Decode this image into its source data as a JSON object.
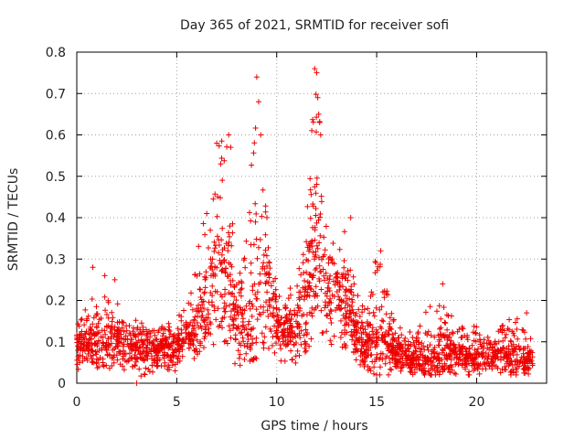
{
  "chart_data": {
    "type": "scatter",
    "title": "Day 365 of 2021, SRMTID for receiver sofi",
    "xlabel": "GPS time / hours",
    "ylabel": "SRMTID / TECUs",
    "xlim": [
      0,
      23.5
    ],
    "ylim": [
      0,
      0.8
    ],
    "grid": true,
    "marker": "+",
    "color": "#ee0000",
    "x_ticks": [
      "0",
      "5",
      "10",
      "15",
      "20"
    ],
    "x_tick_values": [
      0,
      5,
      10,
      15,
      20
    ],
    "y_ticks": [
      "0",
      "0.1",
      "0.2",
      "0.3",
      "0.4",
      "0.5",
      "0.6",
      "0.7",
      "0.8"
    ],
    "y_tick_values": [
      0,
      0.1,
      0.2,
      0.3,
      0.4,
      0.5,
      0.6,
      0.7,
      0.8
    ],
    "envelope": {
      "description": "Approximate SRMTID level vs time (hours), read from the scatter density",
      "x": [
        0,
        1,
        2,
        3,
        4,
        5,
        5.8,
        6.5,
        7.0,
        7.5,
        8.0,
        8.5,
        9.0,
        9.5,
        10.0,
        10.5,
        11.0,
        11.5,
        12.0,
        12.5,
        13.0,
        13.5,
        14.0,
        14.5,
        15.0,
        16.0,
        17.0,
        18.0,
        19.0,
        20.0,
        21.0,
        22.0,
        22.8
      ],
      "mean": [
        0.1,
        0.1,
        0.1,
        0.09,
        0.08,
        0.09,
        0.12,
        0.2,
        0.28,
        0.25,
        0.12,
        0.12,
        0.22,
        0.25,
        0.15,
        0.12,
        0.13,
        0.2,
        0.32,
        0.25,
        0.22,
        0.2,
        0.12,
        0.09,
        0.09,
        0.08,
        0.06,
        0.06,
        0.07,
        0.07,
        0.07,
        0.06,
        0.06
      ],
      "high": [
        0.16,
        0.22,
        0.2,
        0.15,
        0.15,
        0.15,
        0.25,
        0.45,
        0.58,
        0.6,
        0.25,
        0.35,
        0.74,
        0.45,
        0.25,
        0.22,
        0.28,
        0.46,
        0.76,
        0.4,
        0.32,
        0.38,
        0.22,
        0.18,
        0.32,
        0.14,
        0.12,
        0.24,
        0.14,
        0.15,
        0.13,
        0.17,
        0.1
      ],
      "low": [
        0.03,
        0.03,
        0.03,
        0.0,
        0.02,
        0.03,
        0.05,
        0.08,
        0.1,
        0.08,
        0.04,
        0.05,
        0.06,
        0.06,
        0.05,
        0.04,
        0.05,
        0.08,
        0.12,
        0.1,
        0.08,
        0.07,
        0.04,
        0.03,
        0.02,
        0.02,
        0.02,
        0.02,
        0.02,
        0.02,
        0.02,
        0.02,
        0.02
      ]
    },
    "notable_points": {
      "x": [
        0.8,
        1.4,
        1.9,
        3.0,
        6.5,
        7.0,
        7.2,
        7.6,
        7.7,
        9.0,
        9.1,
        9.2,
        11.9,
        12.0,
        12.05,
        12.1,
        12.15,
        12.2,
        13.7,
        15.2,
        18.3,
        22.5
      ],
      "y": [
        0.28,
        0.26,
        0.25,
        0.0,
        0.41,
        0.58,
        0.53,
        0.6,
        0.57,
        0.74,
        0.68,
        0.6,
        0.76,
        0.75,
        0.69,
        0.65,
        0.63,
        0.6,
        0.4,
        0.32,
        0.24,
        0.17
      ]
    },
    "n_points": 2300,
    "seed": 365
  }
}
